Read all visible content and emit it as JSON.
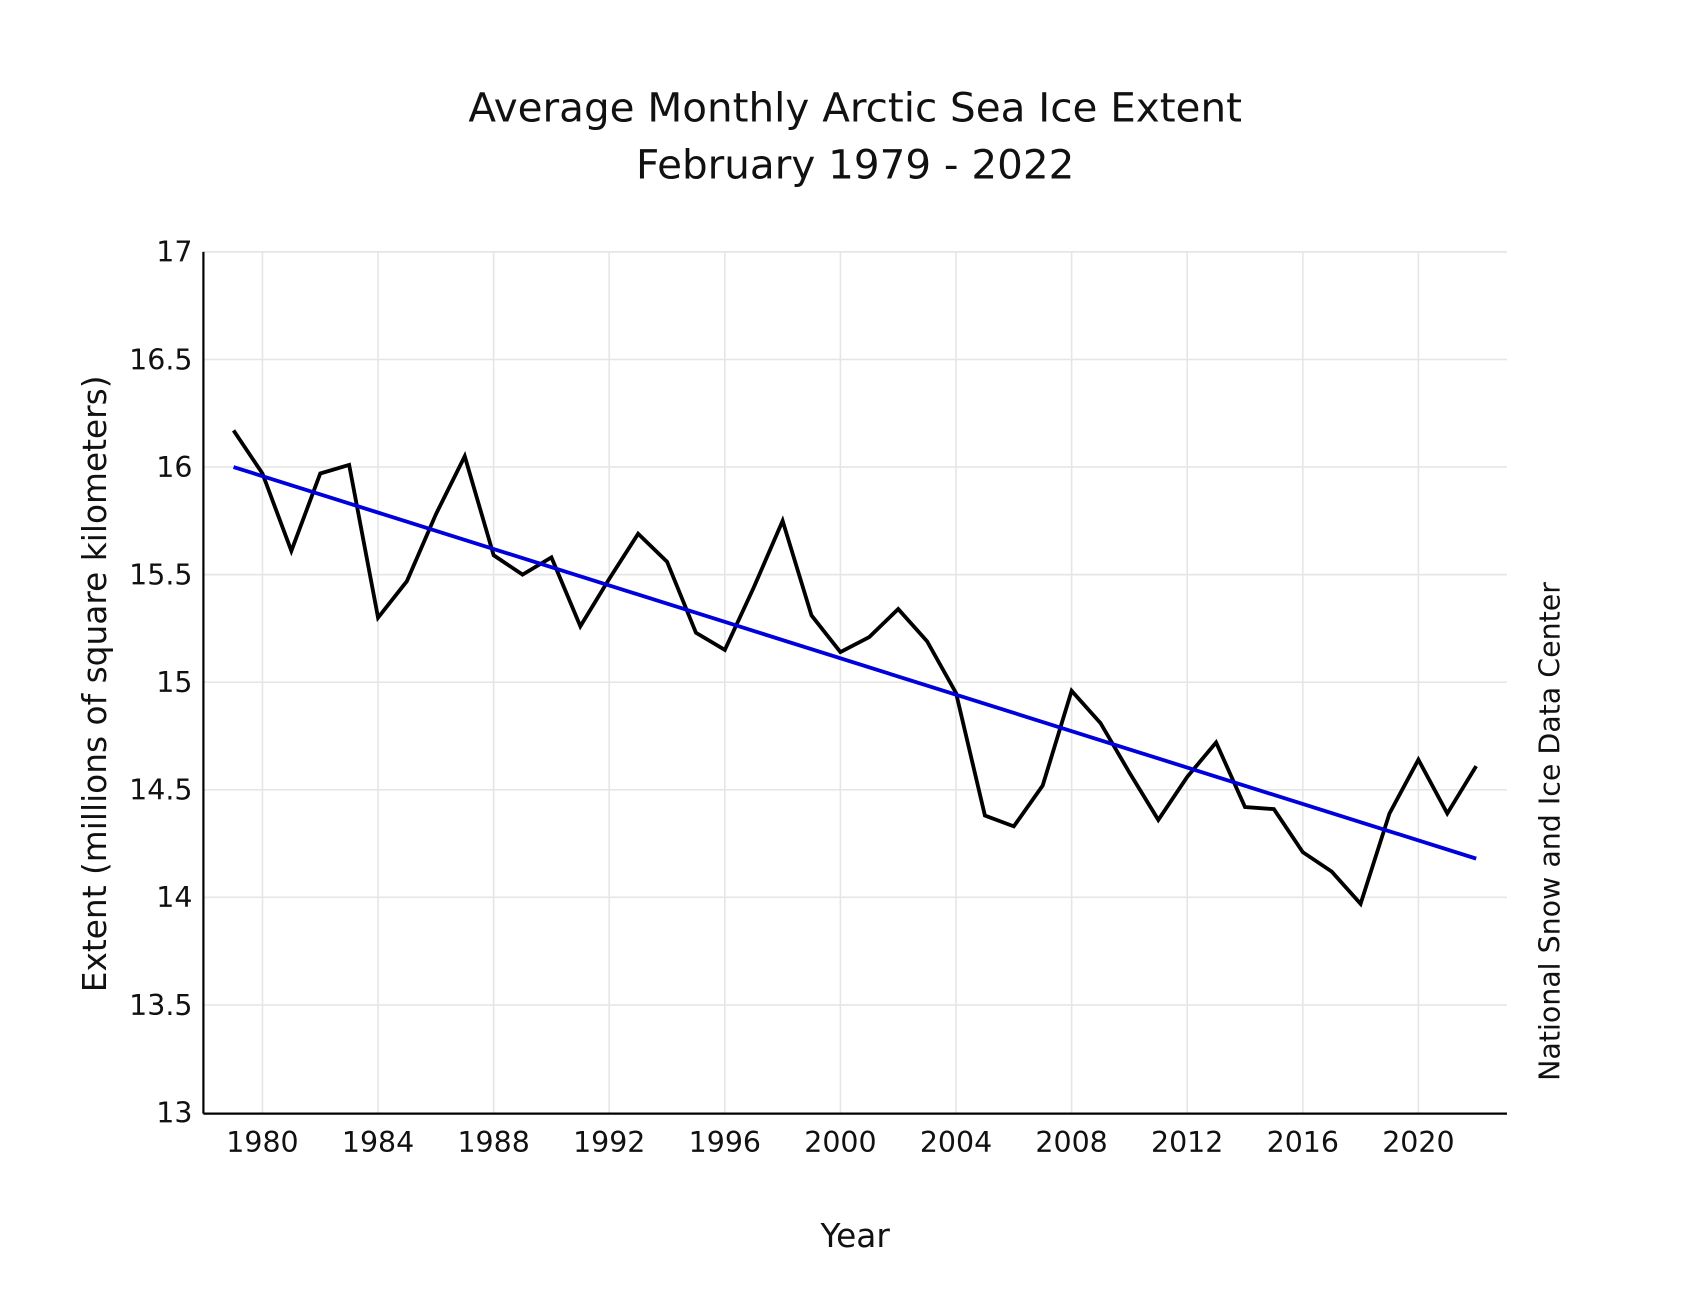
{
  "chart_data": {
    "type": "line",
    "title": "Average Monthly Arctic Sea Ice Extent",
    "subtitle": "February 1979 - 2022",
    "xlabel": "Year",
    "ylabel": "Extent (millions of square kilometers)",
    "credit": "National Snow and Ice Data Center",
    "xlim": [
      1978,
      2023
    ],
    "ylim": [
      13,
      17
    ],
    "grid": true,
    "x_ticks": [
      1980,
      1984,
      1988,
      1992,
      1996,
      2000,
      2004,
      2008,
      2012,
      2016,
      2020
    ],
    "y_ticks": [
      "13",
      "13.5",
      "14",
      "14.5",
      "15",
      "15.5",
      "16",
      "16.5",
      "17"
    ],
    "x": [
      1979,
      1980,
      1981,
      1982,
      1983,
      1984,
      1985,
      1986,
      1987,
      1988,
      1989,
      1990,
      1991,
      1992,
      1993,
      1994,
      1995,
      1996,
      1997,
      1998,
      1999,
      2000,
      2001,
      2002,
      2003,
      2004,
      2005,
      2006,
      2007,
      2008,
      2009,
      2010,
      2011,
      2012,
      2013,
      2014,
      2015,
      2016,
      2017,
      2018,
      2019,
      2020,
      2021,
      2022
    ],
    "series": [
      {
        "values": [
          16.17,
          15.97,
          15.61,
          15.97,
          16.01,
          15.3,
          15.47,
          15.78,
          16.05,
          15.59,
          15.5,
          15.58,
          15.26,
          15.48,
          15.69,
          15.56,
          15.23,
          15.15,
          15.44,
          15.75,
          15.31,
          15.14,
          15.21,
          15.34,
          15.19,
          14.95,
          14.38,
          14.33,
          14.52,
          14.96,
          14.81,
          14.58,
          14.36,
          14.56,
          14.72,
          14.42,
          14.41,
          14.21,
          14.12,
          13.97,
          14.39,
          14.64,
          14.39,
          14.61
        ],
        "color": "#000000"
      }
    ],
    "trend": {
      "x": [
        1979,
        2022
      ],
      "values": [
        16.0,
        14.18
      ],
      "color": "#0000dd"
    }
  }
}
